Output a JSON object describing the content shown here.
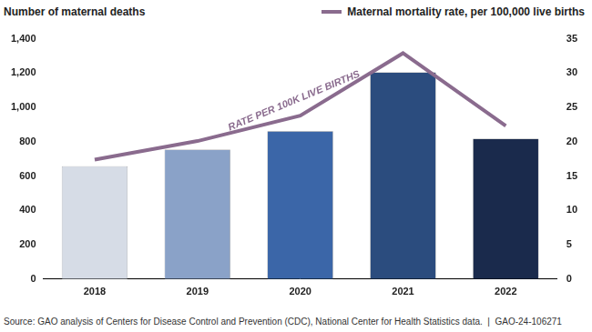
{
  "chart_data": {
    "type": "bar",
    "ylabel": "Number of maternal deaths",
    "annotation": "RATE PER 100K LIVE BIRTHS",
    "source": "Source: GAO analysis of Centers for Disease Control and Prevention (CDC), National Center for Health Statistics data.  |  GAO-24-106271",
    "categories": [
      "2018",
      "2019",
      "2020",
      "2021",
      "2022"
    ],
    "series": [
      {
        "type": "bar",
        "colors": [
          "#d6dce6",
          "#8aa2c8",
          "#3b66a8",
          "#2b4c7e",
          "#1a2a4c"
        ],
        "values": [
          658,
          754,
          861,
          1205,
          817
        ]
      },
      {
        "name": "Maternal mortality rate, per 100,000 live births",
        "type": "line",
        "axis": "y2",
        "color": "#8a6b8e",
        "values": [
          17.4,
          20.1,
          23.8,
          32.9,
          22.3
        ]
      }
    ],
    "ylim": [
      0,
      1400
    ],
    "yticks": [
      0,
      200,
      400,
      600,
      800,
      {
        "value": 1000,
        "label": "1,000"
      },
      {
        "value": 1200,
        "label": "1,200"
      },
      {
        "value": 1400,
        "label": "1,400"
      }
    ],
    "y2lim": [
      0,
      35
    ],
    "y2ticks": [
      0,
      5,
      10,
      15,
      20,
      25,
      30,
      35
    ],
    "grid": false,
    "legend": "top right"
  }
}
